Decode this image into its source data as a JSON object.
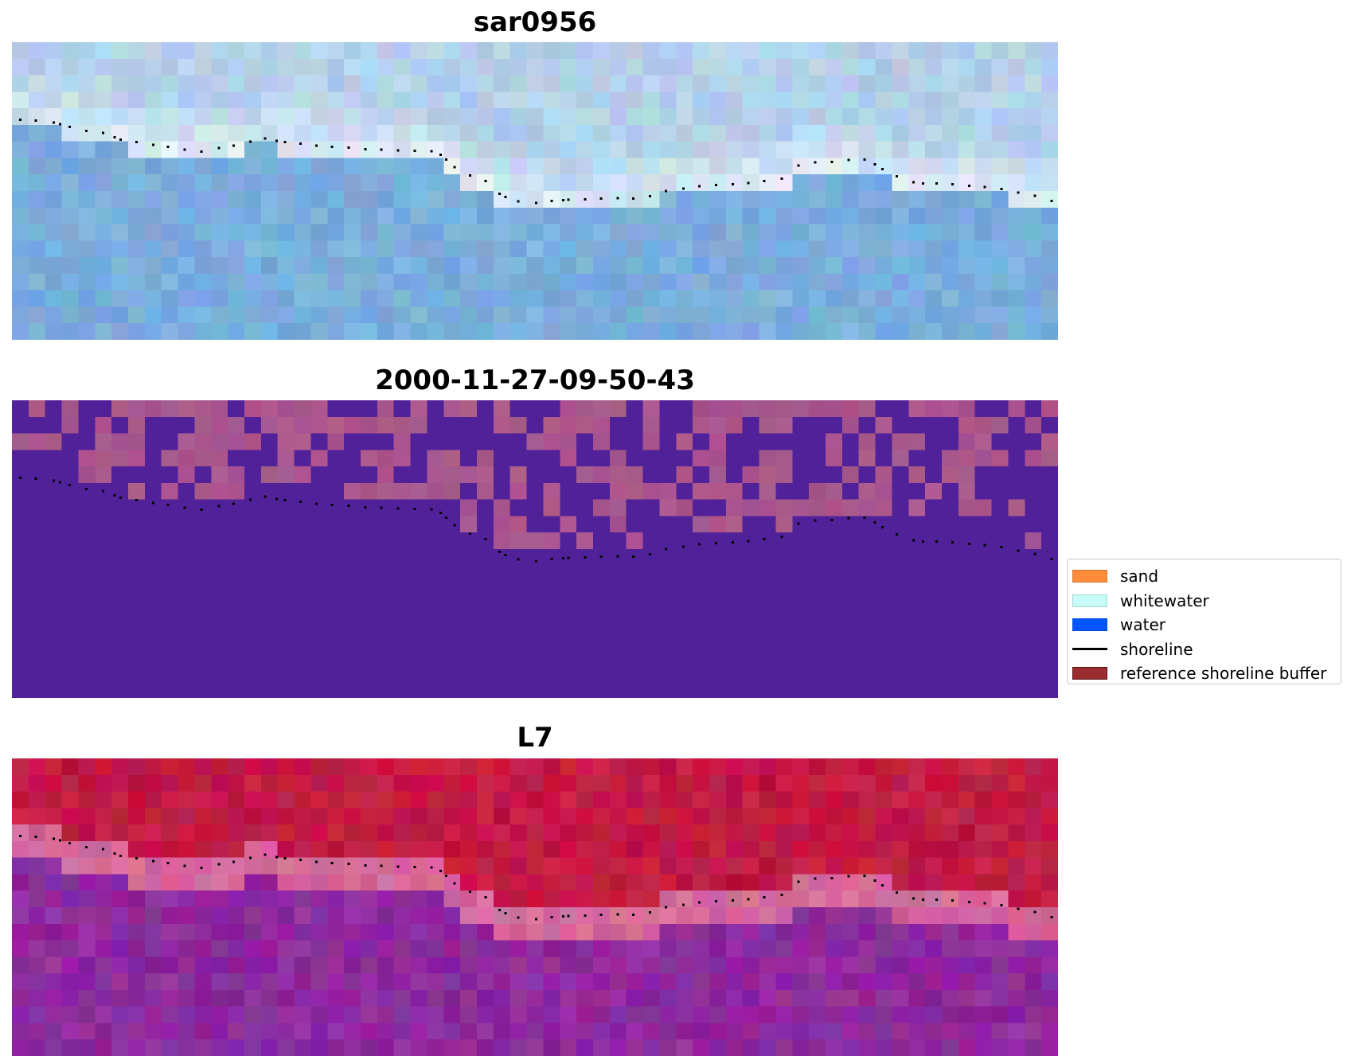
{
  "panels": [
    {
      "title": "sar0956",
      "kind": "satellite_rgb",
      "base_color": "#7eb0dc",
      "upper_color": "#b8d4ea",
      "bright_color": "#eef6fb"
    },
    {
      "title": "2000-11-27-09-50-43",
      "kind": "classification",
      "base_color": "#512199",
      "overlay_color": "#a9578c"
    },
    {
      "title": "L7",
      "kind": "false_color",
      "base_color": "#8e2a9e",
      "upper_color": "#c21a44",
      "band_color": "#d36a9c"
    }
  ],
  "legend": {
    "items": [
      {
        "label": "sand",
        "color": "#ff8c3a",
        "type": "patch"
      },
      {
        "label": "whitewater",
        "color": "#c8fcf8",
        "type": "patch"
      },
      {
        "label": "water",
        "color": "#0055ff",
        "type": "patch"
      },
      {
        "label": "shoreline",
        "color": "#000000",
        "type": "line"
      },
      {
        "label": "reference shoreline buffer",
        "color": "#9b2d30",
        "type": "patch"
      }
    ]
  },
  "shoreline_points_pct": [
    [
      0.8,
      26.1
    ],
    [
      2.3,
      26.4
    ],
    [
      4.0,
      27.0
    ],
    [
      4.6,
      27.5
    ],
    [
      5.5,
      28.5
    ],
    [
      7.1,
      29.8
    ],
    [
      8.7,
      30.5
    ],
    [
      9.8,
      32.0
    ],
    [
      10.4,
      32.8
    ],
    [
      11.9,
      33.5
    ],
    [
      13.5,
      34.5
    ],
    [
      14.9,
      35.1
    ],
    [
      16.5,
      36.1
    ],
    [
      18.1,
      36.8
    ],
    [
      19.8,
      35.5
    ],
    [
      21.2,
      34.7
    ],
    [
      22.8,
      33.4
    ],
    [
      24.2,
      32.3
    ],
    [
      25.3,
      33.2
    ],
    [
      26.1,
      33.5
    ],
    [
      27.6,
      34.1
    ],
    [
      29.1,
      34.8
    ],
    [
      30.6,
      35.1
    ],
    [
      32.2,
      35.4
    ],
    [
      33.8,
      35.9
    ],
    [
      35.3,
      36.1
    ],
    [
      36.9,
      36.4
    ],
    [
      38.5,
      36.5
    ],
    [
      40.1,
      36.6
    ],
    [
      41.0,
      37.8
    ],
    [
      41.5,
      39.5
    ],
    [
      42.3,
      42.0
    ],
    [
      43.8,
      44.8
    ],
    [
      45.3,
      46.6
    ],
    [
      46.6,
      51.0
    ],
    [
      47.2,
      52.0
    ],
    [
      48.4,
      53.5
    ],
    [
      50.1,
      54.0
    ],
    [
      51.6,
      53.4
    ],
    [
      52.7,
      53.1
    ],
    [
      53.2,
      53.0
    ],
    [
      54.8,
      52.8
    ],
    [
      56.3,
      52.6
    ],
    [
      57.9,
      52.4
    ],
    [
      59.4,
      52.6
    ],
    [
      61.0,
      51.8
    ],
    [
      62.5,
      50.0
    ],
    [
      64.2,
      49.2
    ],
    [
      65.7,
      48.4
    ],
    [
      67.3,
      48.0
    ],
    [
      68.9,
      47.7
    ],
    [
      70.4,
      47.3
    ],
    [
      71.9,
      46.6
    ],
    [
      73.6,
      45.9
    ],
    [
      75.2,
      41.5
    ],
    [
      76.8,
      40.4
    ],
    [
      78.4,
      40.2
    ],
    [
      80.0,
      39.6
    ],
    [
      81.5,
      39.4
    ],
    [
      82.5,
      41.0
    ],
    [
      83.2,
      42.6
    ],
    [
      84.6,
      45.0
    ],
    [
      86.2,
      47.1
    ],
    [
      87.1,
      47.5
    ],
    [
      88.4,
      47.4
    ],
    [
      89.9,
      47.7
    ],
    [
      91.5,
      48.3
    ],
    [
      93.0,
      48.7
    ],
    [
      94.6,
      49.3
    ],
    [
      96.2,
      50.6
    ],
    [
      97.8,
      51.6
    ],
    [
      99.4,
      53.4
    ]
  ]
}
